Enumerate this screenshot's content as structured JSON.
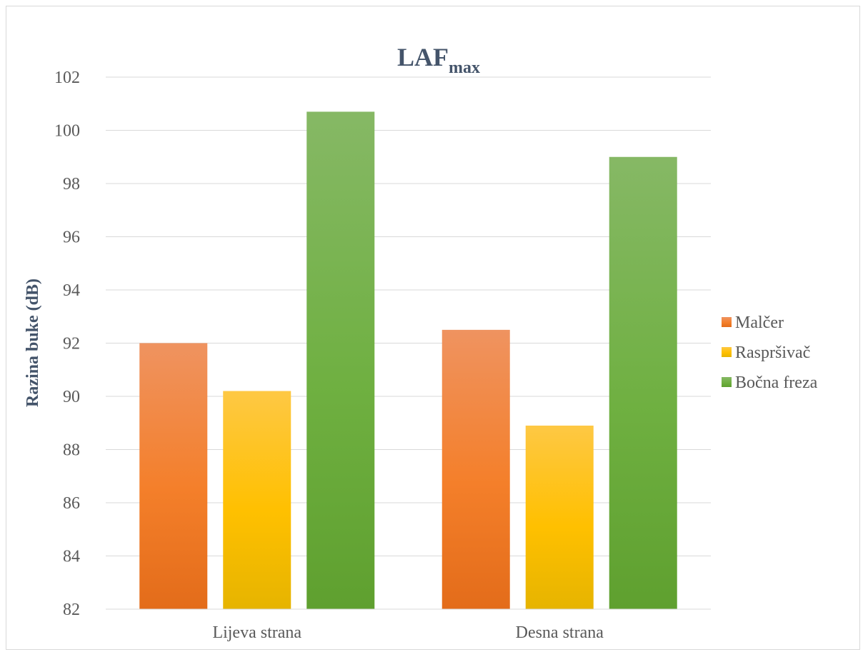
{
  "chart_data": {
    "type": "bar",
    "title": "LAF",
    "title_subscript": "max",
    "xlabel": "",
    "ylabel": "Razina buke (dB)",
    "categories": [
      "Lijeva strana",
      "Desna strana"
    ],
    "series": [
      {
        "name": "Malčer",
        "values": [
          92.0,
          92.5
        ],
        "color": "#ed7d31",
        "gradient": [
          "#ef9360",
          "#f47f2a",
          "#e36c1a"
        ]
      },
      {
        "name": "Raspršivač",
        "values": [
          90.2,
          88.9
        ],
        "color": "#ffc000",
        "gradient": [
          "#fec844",
          "#ffc000",
          "#e6b400"
        ]
      },
      {
        "name": "Bočna freza",
        "values": [
          100.7,
          99.0
        ],
        "color": "#70ad47",
        "gradient": [
          "#86b865",
          "#6fb041",
          "#5fa02f"
        ]
      }
    ],
    "ylim": [
      82,
      102
    ],
    "yticks": [
      82,
      84,
      86,
      88,
      90,
      92,
      94,
      96,
      98,
      100,
      102
    ],
    "grid": true,
    "legend_position": "right"
  }
}
